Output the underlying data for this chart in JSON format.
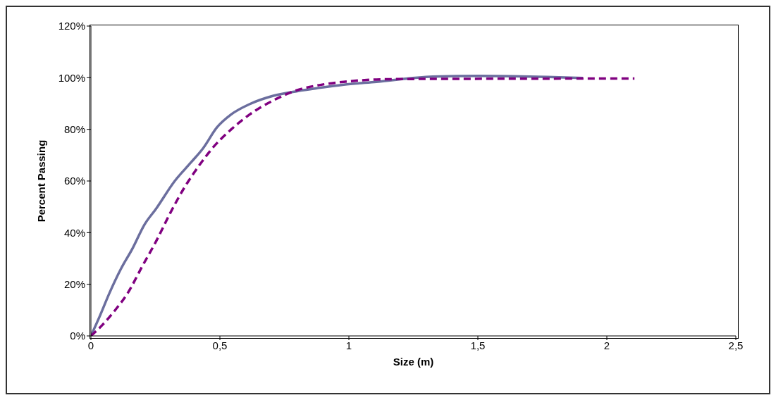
{
  "chart_data": {
    "type": "line",
    "xlabel": "Size (m)",
    "ylabel": "Percent Passing",
    "xlim": [
      0,
      2.5
    ],
    "xticks": [
      0,
      {
        "value": 0.5,
        "label": "0,5"
      },
      1,
      {
        "value": 1.5,
        "label": "1,5"
      },
      2,
      {
        "value": 2.5,
        "label": "2,5"
      }
    ],
    "ylim": [
      0,
      120
    ],
    "yticks": [
      {
        "value": 0,
        "label": "0%"
      },
      {
        "value": 20,
        "label": "20%"
      },
      {
        "value": 40,
        "label": "40%"
      },
      {
        "value": 60,
        "label": "60%"
      },
      {
        "value": 80,
        "label": "80%"
      },
      {
        "value": 100,
        "label": "100%"
      },
      {
        "value": 120,
        "label": "120%"
      }
    ],
    "grid": false,
    "marker": "none",
    "series": [
      {
        "color": "#6b6e9e",
        "line_style": "solid",
        "x": [
          0,
          0.035,
          0.071,
          0.116,
          0.162,
          0.207,
          0.253,
          0.325,
          0.389,
          0.435,
          0.489,
          0.544,
          0.616,
          0.707,
          0.8,
          0.889,
          0.98,
          1.107,
          1.325,
          1.507,
          1.907
        ],
        "values": [
          0,
          7.8,
          16.4,
          25.9,
          34,
          43,
          49.3,
          60,
          67.3,
          72.7,
          80.8,
          85.8,
          89.8,
          93,
          94.8,
          96.1,
          97.3,
          98.4,
          100.4,
          100.7,
          99.9
        ]
      },
      {
        "color": "#800080",
        "line_style": "dashed",
        "x": [
          0,
          0.044,
          0.098,
          0.144,
          0.198,
          0.253,
          0.307,
          0.362,
          0.416,
          0.471,
          0.544,
          0.616,
          0.707,
          0.8,
          0.889,
          0.98,
          1.107,
          1.235,
          1.6,
          2.107
        ],
        "values": [
          0,
          4.2,
          10.5,
          16.8,
          26.8,
          36.7,
          47.5,
          57.4,
          65.5,
          72.7,
          80,
          85.8,
          91.2,
          95.2,
          97.2,
          98.4,
          99.3,
          99.5,
          99.6,
          99.7
        ]
      }
    ]
  }
}
